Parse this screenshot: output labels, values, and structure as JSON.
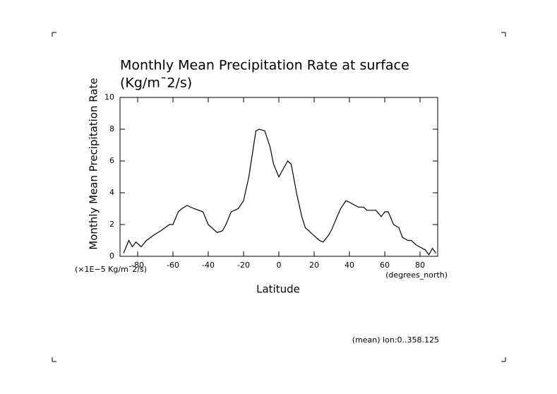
{
  "chart_data": {
    "type": "line",
    "title": "Monthly Mean Precipitation Rate at surface",
    "subtitle": "(Kg/m¯2/s)",
    "y_label": "Monthly Mean Precipitation Rate",
    "y_units": "(×1E−5 Kg/m¯2/s)",
    "x_label": "Latitude",
    "x_units": "(degrees_north)",
    "annotation": "(mean) lon:0..358.125",
    "xlim": [
      -90,
      90
    ],
    "ylim": [
      0,
      10
    ],
    "xticks": [
      -80,
      -60,
      -40,
      -20,
      0,
      20,
      40,
      60,
      80
    ],
    "yticks": [
      0,
      2,
      4,
      6,
      8,
      10
    ],
    "color": "#000000",
    "x": [
      -88,
      -85,
      -83,
      -81,
      -78,
      -75,
      -70,
      -67,
      -62,
      -60,
      -57,
      -55,
      -52,
      -48,
      -43,
      -40,
      -37,
      -35,
      -32,
      -30,
      -27,
      -23,
      -20,
      -17,
      -13,
      -11,
      -8,
      -5,
      -3,
      0,
      3,
      5,
      7,
      10,
      13,
      15,
      18,
      20,
      23,
      25,
      28,
      30,
      33,
      35,
      38,
      40,
      45,
      48,
      50,
      55,
      58,
      60,
      62,
      65,
      68,
      70,
      73,
      75,
      78,
      83,
      85,
      87,
      89
    ],
    "values": [
      0.2,
      1.0,
      0.6,
      0.9,
      0.6,
      1.0,
      1.4,
      1.6,
      2.0,
      2.0,
      2.8,
      3.0,
      3.2,
      3.0,
      2.8,
      2.0,
      1.7,
      1.5,
      1.6,
      2.0,
      2.8,
      3.0,
      3.5,
      5.0,
      7.9,
      8.0,
      7.9,
      6.9,
      5.8,
      5.0,
      5.6,
      6.0,
      5.8,
      4.0,
      2.5,
      1.8,
      1.5,
      1.3,
      1.0,
      0.9,
      1.3,
      1.7,
      2.5,
      3.0,
      3.5,
      3.4,
      3.1,
      3.1,
      2.9,
      2.9,
      2.5,
      2.8,
      2.8,
      2.0,
      1.8,
      1.2,
      1.0,
      1.0,
      0.7,
      0.4,
      0.1,
      0.5,
      0.2
    ]
  }
}
